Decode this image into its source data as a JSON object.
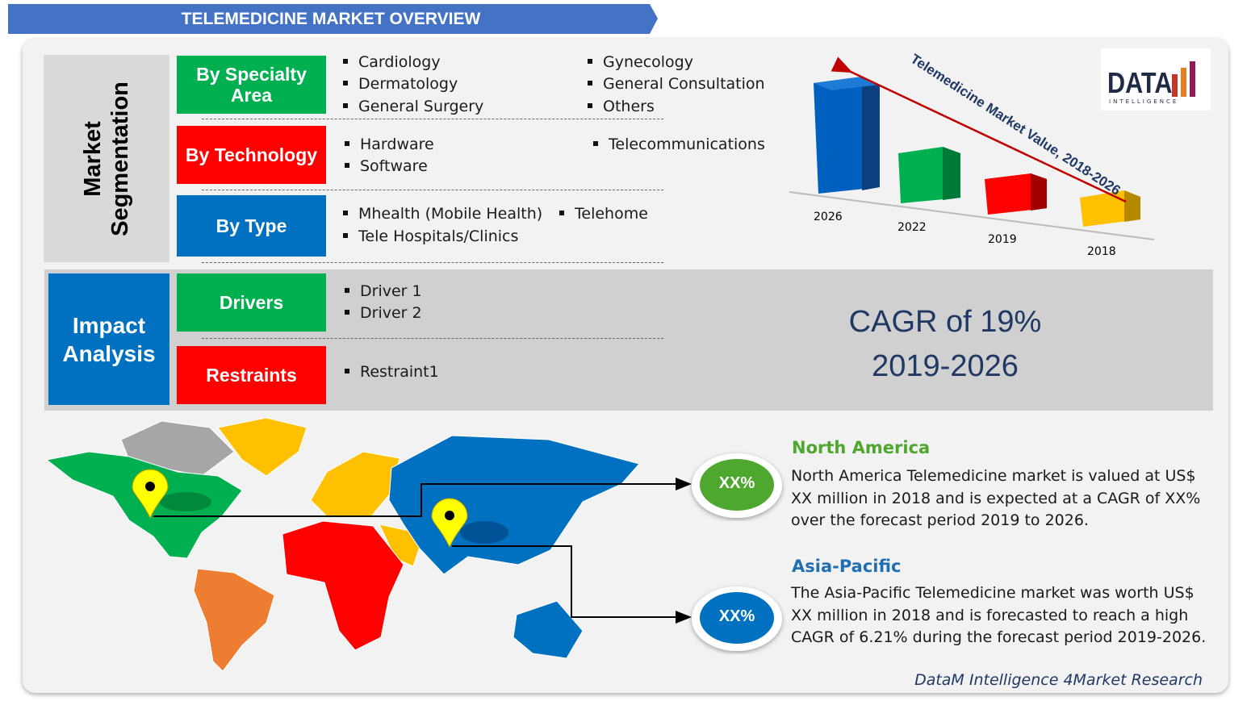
{
  "header": {
    "title": "TELEMEDICINE MARKET OVERVIEW"
  },
  "segmentation": {
    "label": [
      "Market",
      "Segmentation"
    ],
    "rows": [
      {
        "label": "By Specialty Area",
        "items": [
          "Cardiology",
          "Dermatology",
          "General Surgery",
          "Gynecology",
          "General Consultation",
          "Others"
        ]
      },
      {
        "label": "By Technology",
        "items": [
          "Hardware",
          "Software",
          "Telecommunications"
        ]
      },
      {
        "label": "By Type",
        "items": [
          "Mhealth (Mobile Health)",
          "Tele Hospitals/Clinics",
          "Telehome"
        ]
      }
    ]
  },
  "impact": {
    "label": [
      "Impact",
      "Analysis"
    ],
    "rows": [
      {
        "label": "Drivers",
        "items": [
          "Driver 1",
          "Driver 2"
        ]
      },
      {
        "label": "Restraints",
        "items": [
          "Restraint1"
        ]
      }
    ]
  },
  "cagr": [
    "CAGR of 19%",
    "2019-2026"
  ],
  "market_graphic": {
    "title": "Telemedicine Market Value, 2018-2026",
    "years": [
      "2026",
      "2022",
      "2019",
      "2018"
    ]
  },
  "logo": {
    "name": "DATA",
    "tagline": "INTELLIGENCE"
  },
  "regions": [
    {
      "name": "North America",
      "badge": "XX%",
      "text": "North America Telemedicine market is valued at US$ XX million in 2018 and is expected at a CAGR of XX% over the forecast period 2019 to 2026."
    },
    {
      "name": "Asia-Pacific",
      "badge": "XX%",
      "text": "The Asia-Pacific Telemedicine market was worth US$ XX million in 2018 and is forecasted to reach a high CAGR of 6.21% during the forecast period 2019-2026."
    }
  ],
  "footer": "DataM Intelligence 4Market Research"
}
